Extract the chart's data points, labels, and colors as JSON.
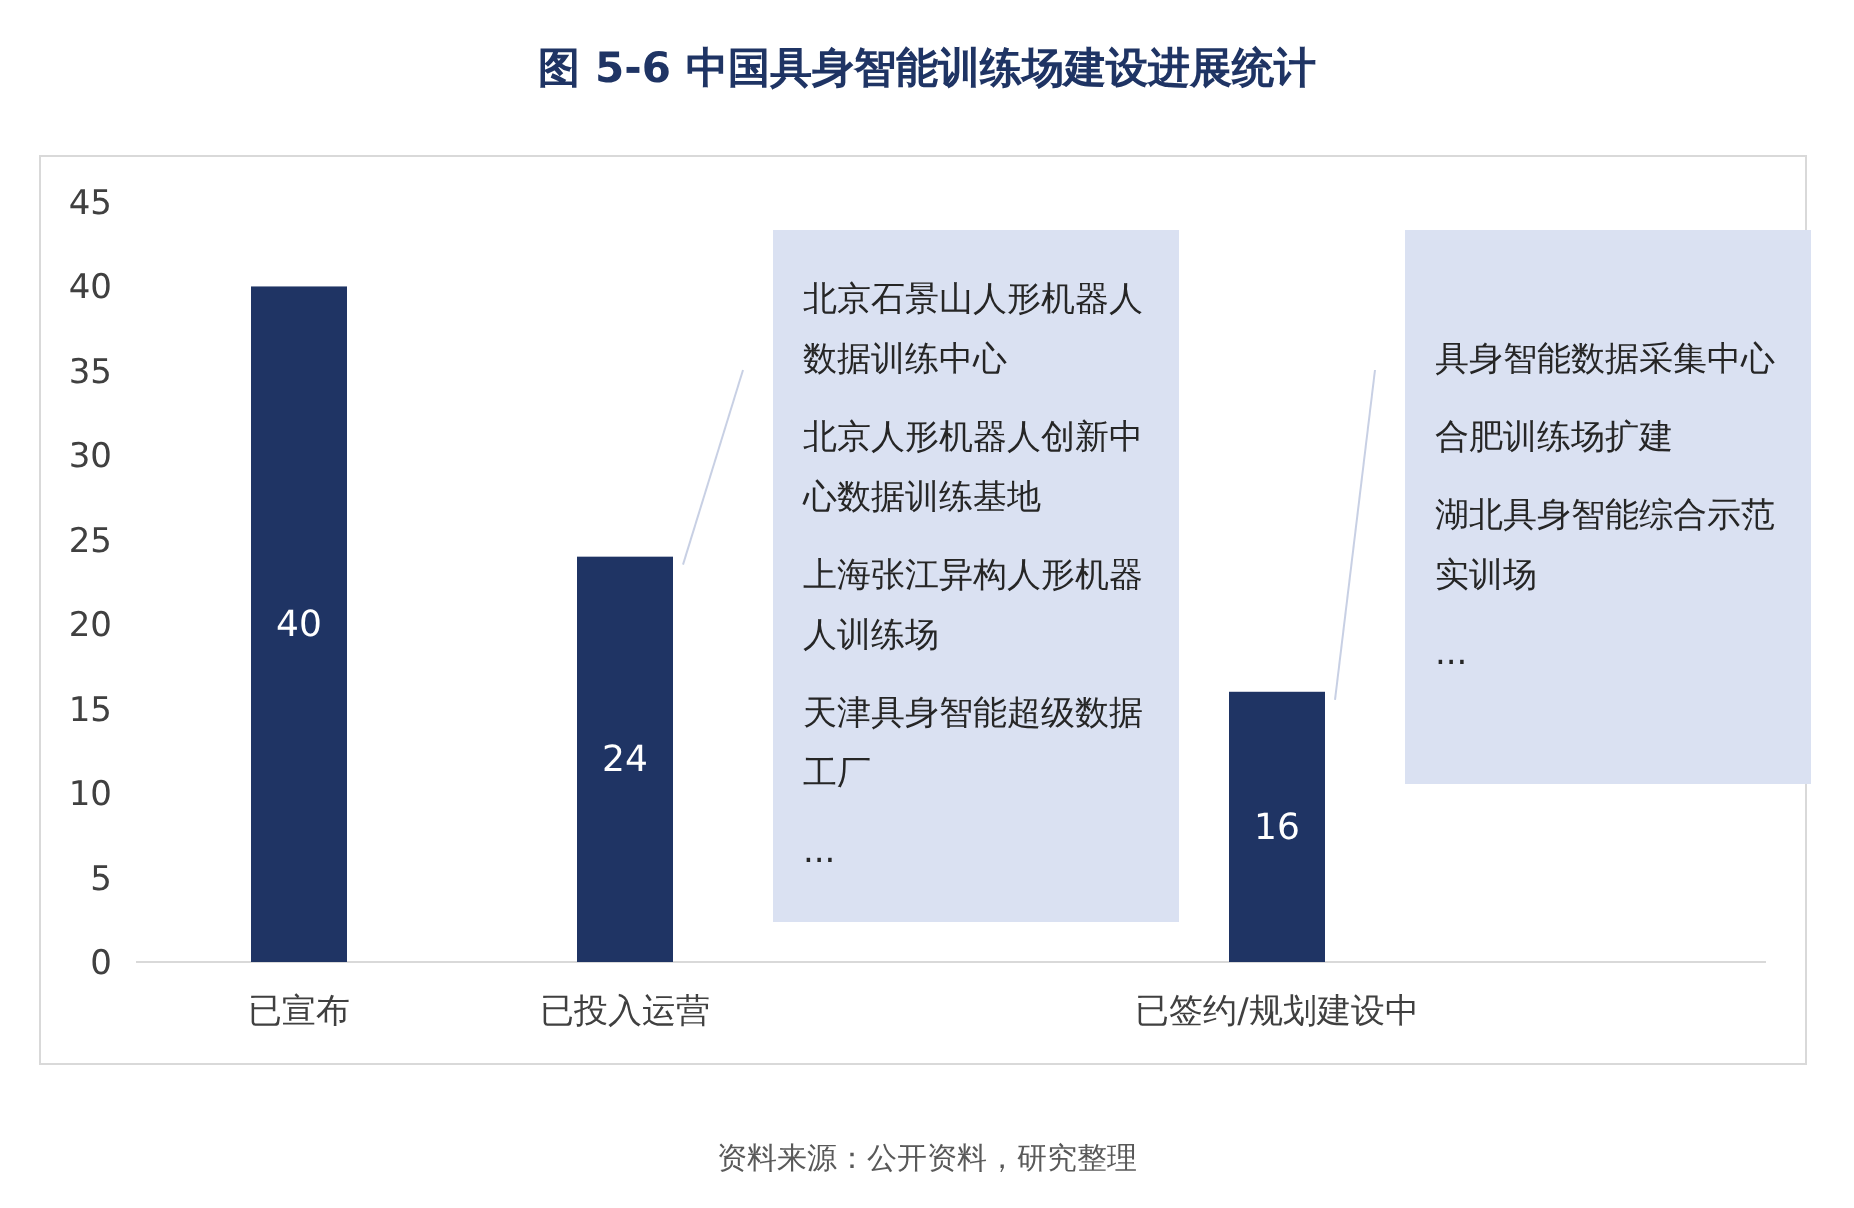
{
  "chart_data": {
    "type": "bar",
    "title": "图  5-6  中国具身智能训练场建设进展统计",
    "categories": [
      "已宣布",
      "已投入运营",
      null,
      "已签约/规划建设中",
      null
    ],
    "values": [
      40,
      24,
      null,
      16,
      null
    ],
    "color": "#1f3464",
    "ylim": [
      0,
      45
    ],
    "yticks": [
      0,
      5,
      10,
      15,
      20,
      25,
      30,
      35,
      40,
      45
    ],
    "grid": false,
    "data_labels": true,
    "annotations": [
      "北京石景山人形机器人数据训练中心",
      "北京人形机器人创新中心数据训练基地",
      "上海张江异构人形机器人训练场",
      "天津具身智能超级数据工厂",
      "...",
      "具身智能数据采集中心",
      "合肥训练场扩建",
      "湖北具身智能综合示范实训场",
      "...",
      "资料来源：公开资料，研究整理"
    ]
  }
}
